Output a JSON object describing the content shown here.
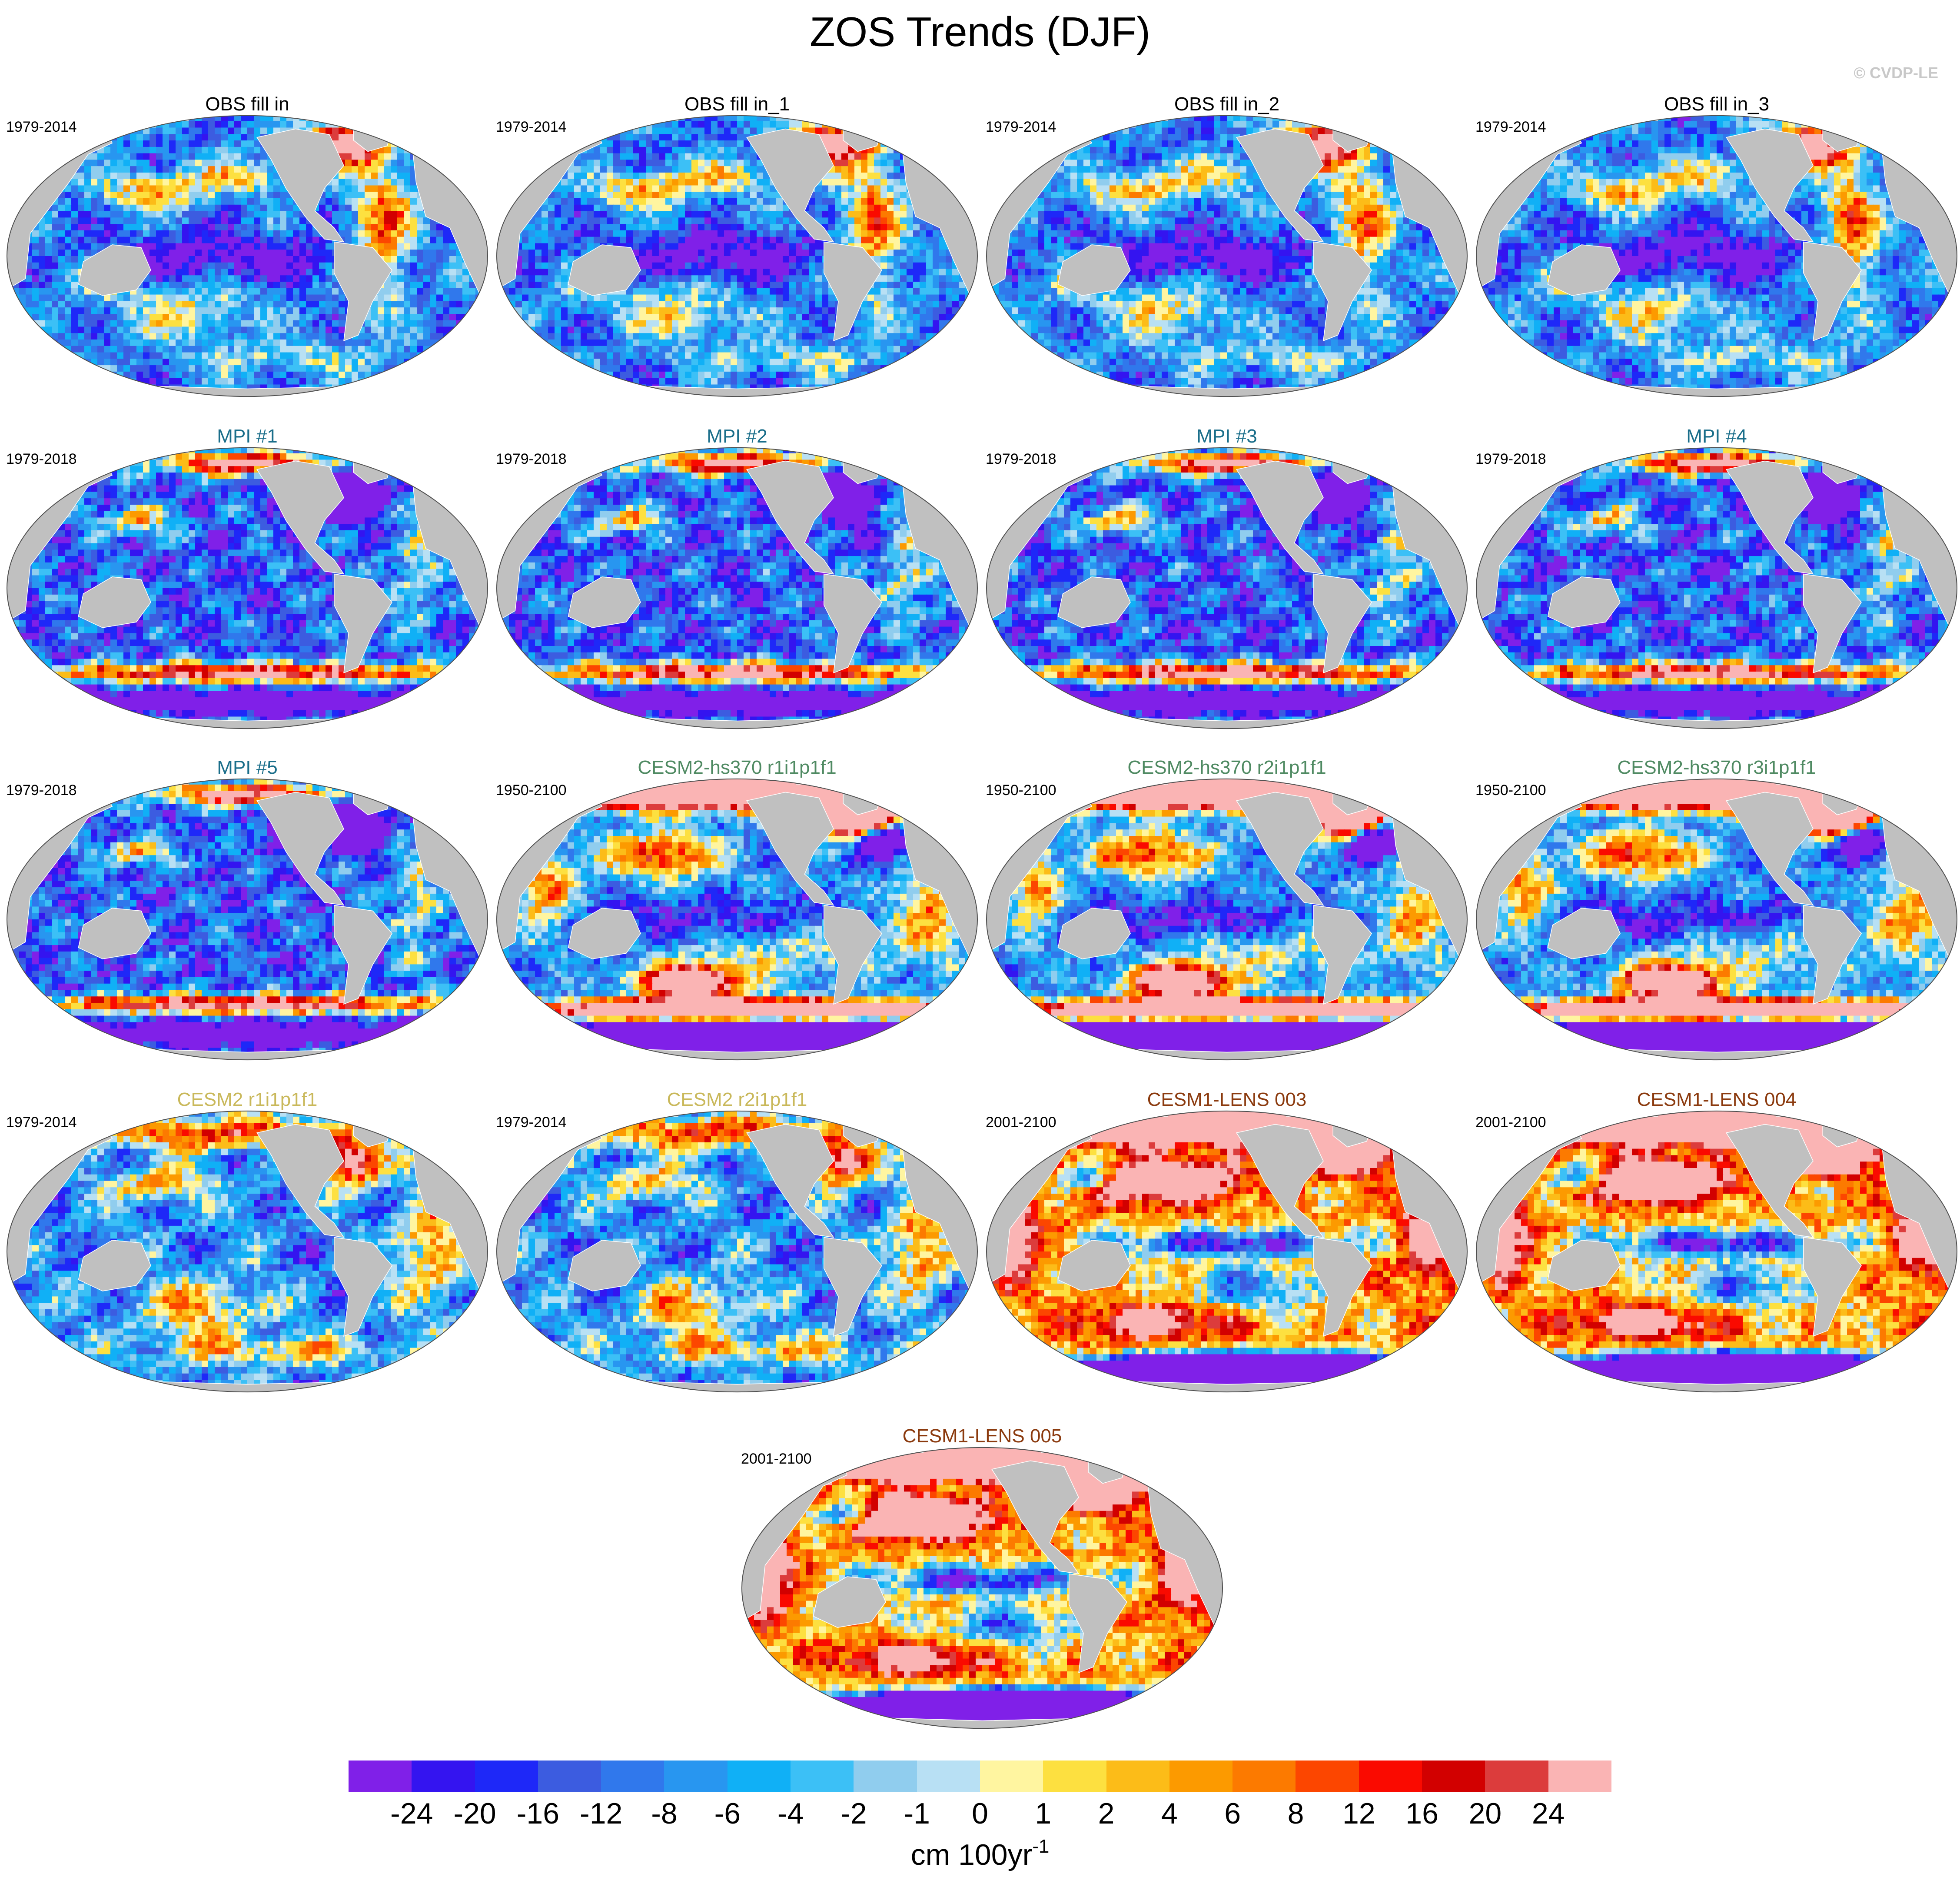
{
  "title": "ZOS Trends (DJF)",
  "watermark": "© CVDP-LE",
  "style": {
    "land": "#c0c0c0",
    "outline": "#505050"
  },
  "panels": [
    {
      "title": "OBS fill in",
      "years": "1979-2014",
      "title_color": "#000000",
      "pattern": "obs"
    },
    {
      "title": "OBS fill in_1",
      "years": "1979-2014",
      "title_color": "#000000",
      "pattern": "obs"
    },
    {
      "title": "OBS fill in_2",
      "years": "1979-2014",
      "title_color": "#000000",
      "pattern": "obs"
    },
    {
      "title": "OBS fill in_3",
      "years": "1979-2014",
      "title_color": "#000000",
      "pattern": "obs"
    },
    {
      "title": "MPI #1",
      "years": "1979-2018",
      "title_color": "#1a6e8a",
      "pattern": "mpi"
    },
    {
      "title": "MPI #2",
      "years": "1979-2018",
      "title_color": "#1a6e8a",
      "pattern": "mpi"
    },
    {
      "title": "MPI #3",
      "years": "1979-2018",
      "title_color": "#1a6e8a",
      "pattern": "mpi"
    },
    {
      "title": "MPI #4",
      "years": "1979-2018",
      "title_color": "#1a6e8a",
      "pattern": "mpi"
    },
    {
      "title": "MPI #5",
      "years": "1979-2018",
      "title_color": "#1a6e8a",
      "pattern": "mpi"
    },
    {
      "title": "CESM2-hs370 r1i1p1f1",
      "years": "1950-2100",
      "title_color": "#4f8a62",
      "pattern": "hs370"
    },
    {
      "title": "CESM2-hs370 r2i1p1f1",
      "years": "1950-2100",
      "title_color": "#4f8a62",
      "pattern": "hs370"
    },
    {
      "title": "CESM2-hs370 r3i1p1f1",
      "years": "1950-2100",
      "title_color": "#4f8a62",
      "pattern": "hs370"
    },
    {
      "title": "CESM2 r1i1p1f1",
      "years": "1979-2014",
      "title_color": "#c9b85a",
      "pattern": "cesm2"
    },
    {
      "title": "CESM2 r2i1p1f1",
      "years": "1979-2014",
      "title_color": "#c9b85a",
      "pattern": "cesm2"
    },
    {
      "title": "CESM1-LENS 003",
      "years": "2001-2100",
      "title_color": "#8b3a0e",
      "pattern": "lens"
    },
    {
      "title": "CESM1-LENS 004",
      "years": "2001-2100",
      "title_color": "#8b3a0e",
      "pattern": "lens"
    },
    {
      "title": "CESM1-LENS 005",
      "years": "2001-2100",
      "title_color": "#8b3a0e",
      "pattern": "lens"
    }
  ],
  "colorbar": {
    "colors": [
      "#8020e8",
      "#3414f0",
      "#1e28f8",
      "#3c5ce0",
      "#3078ec",
      "#2896f0",
      "#10b0f6",
      "#3cc0f6",
      "#90cdee",
      "#b8e0f4",
      "#fff5a0",
      "#fde040",
      "#fcbc18",
      "#fc9a00",
      "#fc7a00",
      "#fc4600",
      "#fa0a00",
      "#d20000",
      "#dc3c3c",
      "#fab4b4"
    ],
    "labels": [
      "-24",
      "-20",
      "-16",
      "-12",
      "-8",
      "-6",
      "-4",
      "-2",
      "-1",
      "0",
      "1",
      "2",
      "4",
      "6",
      "8",
      "12",
      "16",
      "20",
      "24"
    ],
    "units": "cm 100yr",
    "units_exponent": "-1"
  }
}
